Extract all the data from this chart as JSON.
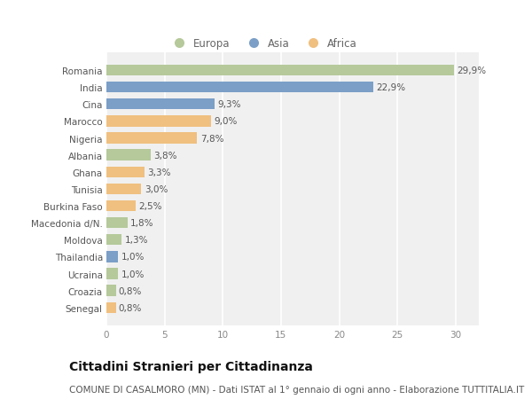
{
  "countries": [
    "Romania",
    "India",
    "Cina",
    "Marocco",
    "Nigeria",
    "Albania",
    "Ghana",
    "Tunisia",
    "Burkina Faso",
    "Macedonia d/N.",
    "Moldova",
    "Thailandia",
    "Ucraina",
    "Croazia",
    "Senegal"
  ],
  "values": [
    29.9,
    22.9,
    9.3,
    9.0,
    7.8,
    3.8,
    3.3,
    3.0,
    2.5,
    1.8,
    1.3,
    1.0,
    1.0,
    0.8,
    0.8
  ],
  "labels": [
    "29,9%",
    "22,9%",
    "9,3%",
    "9,0%",
    "7,8%",
    "3,8%",
    "3,3%",
    "3,0%",
    "2,5%",
    "1,8%",
    "1,3%",
    "1,0%",
    "1,0%",
    "0,8%",
    "0,8%"
  ],
  "categories": [
    "Europa",
    "Asia",
    "Africa"
  ],
  "continent": [
    "Europa",
    "Asia",
    "Asia",
    "Africa",
    "Africa",
    "Europa",
    "Africa",
    "Africa",
    "Africa",
    "Europa",
    "Europa",
    "Asia",
    "Europa",
    "Europa",
    "Africa"
  ],
  "colors": {
    "Europa": "#b5c99a",
    "Asia": "#7b9fc7",
    "Africa": "#f0c080"
  },
  "xlim": [
    0,
    32
  ],
  "xticks": [
    0,
    5,
    10,
    15,
    20,
    25,
    30
  ],
  "bg_color": "#ffffff",
  "plot_bg_color": "#f0f0f0",
  "grid_color": "#ffffff",
  "title": "Cittadini Stranieri per Cittadinanza",
  "subtitle": "COMUNE DI CASALMORO (MN) - Dati ISTAT al 1° gennaio di ogni anno - Elaborazione TUTTITALIA.IT",
  "title_fontsize": 10,
  "subtitle_fontsize": 7.5,
  "bar_height": 0.65,
  "label_fontsize": 7.5,
  "ytick_fontsize": 7.5,
  "xtick_fontsize": 7.5
}
